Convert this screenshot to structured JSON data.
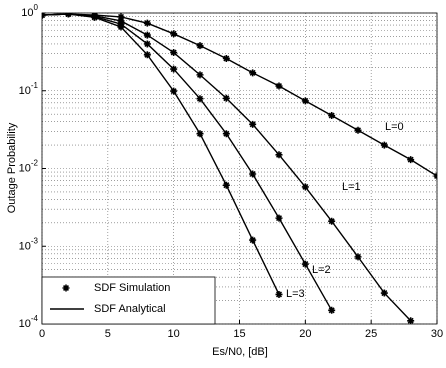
{
  "chart_data": {
    "type": "line",
    "log_y": true,
    "grid": true,
    "color": "#000000",
    "xlabel": "Es/N0, [dB]",
    "ylabel": "Outage Probability",
    "xlim": [
      0,
      30
    ],
    "xticks": [
      0,
      5,
      10,
      15,
      20,
      25,
      30
    ],
    "ylim": [
      0.0001,
      1
    ],
    "yticks": [
      {
        "value": 0.0001,
        "label": "10^-4"
      },
      {
        "value": 0.001,
        "label": "10^-3"
      },
      {
        "value": 0.01,
        "label": "10^-2"
      },
      {
        "value": 0.1,
        "label": "10^-1"
      },
      {
        "value": 1,
        "label": "10^0"
      }
    ],
    "legend": [
      "SDF Simulation",
      "SDF Analytical"
    ],
    "legend_position": "lower left",
    "x": [
      0,
      2,
      4,
      6,
      8,
      10,
      12,
      14,
      16,
      18,
      20,
      22,
      24,
      26,
      28,
      30
    ],
    "series": [
      {
        "name": "L=0",
        "color": "#000000",
        "values": [
          0.94,
          0.97,
          0.94,
          0.89,
          0.74,
          0.54,
          0.38,
          0.26,
          0.17,
          0.115,
          0.074,
          0.048,
          0.031,
          0.02,
          0.013,
          0.008
        ]
      },
      {
        "name": "L=1",
        "color": "#000000",
        "values": [
          0.94,
          0.97,
          0.92,
          0.79,
          0.52,
          0.31,
          0.16,
          0.08,
          0.037,
          0.015,
          0.0058,
          0.0021,
          0.00073,
          0.00025,
          0.00011,
          null
        ]
      },
      {
        "name": "L=2",
        "color": "#000000",
        "values": [
          0.94,
          0.97,
          0.9,
          0.72,
          0.4,
          0.19,
          0.079,
          0.028,
          0.0085,
          0.0023,
          0.00059,
          0.00015,
          null,
          null,
          null,
          null
        ]
      },
      {
        "name": "L=3",
        "color": "#000000",
        "values": [
          0.94,
          0.97,
          0.88,
          0.66,
          0.29,
          0.099,
          0.028,
          0.0061,
          0.0012,
          0.00024,
          null,
          null,
          null,
          null,
          null,
          null
        ]
      }
    ]
  }
}
